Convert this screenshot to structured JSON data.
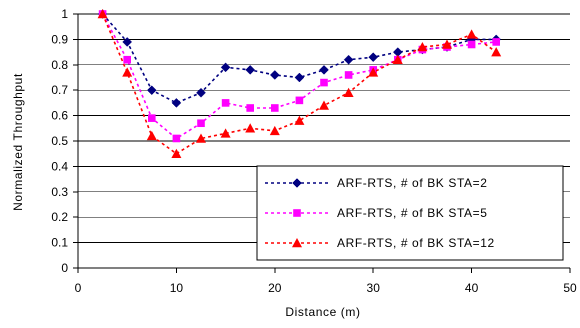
{
  "chart_data": {
    "type": "line",
    "title": "",
    "xlabel": "Distance (m)",
    "ylabel": "Normalized Throughput",
    "xlim": [
      0,
      50
    ],
    "ylim": [
      0,
      1
    ],
    "x_ticks": [
      "0",
      "10",
      "20",
      "30",
      "40",
      "50"
    ],
    "y_ticks": [
      "0",
      "0.1",
      "0.2",
      "0.3",
      "0.4",
      "0.5",
      "0.6",
      "0.7",
      "0.8",
      "0.9",
      "1"
    ],
    "grid": "horizontal",
    "legend_position": "bottom-right",
    "x": [
      2.5,
      5,
      7.5,
      10,
      12.5,
      15,
      17.5,
      20,
      22.5,
      25,
      27.5,
      30,
      32.5,
      35,
      37.5,
      40,
      42.5
    ],
    "series": [
      {
        "name": "ARF-RTS, # of BK STA=2",
        "color": "#000080",
        "marker": "diamond",
        "values": [
          1.0,
          0.89,
          0.7,
          0.65,
          0.69,
          0.79,
          0.78,
          0.76,
          0.75,
          0.78,
          0.82,
          0.83,
          0.85,
          0.86,
          0.87,
          0.9,
          0.9
        ]
      },
      {
        "name": "ARF-RTS, # of BK STA=5",
        "color": "#ff00ff",
        "marker": "square",
        "values": [
          1.0,
          0.82,
          0.59,
          0.51,
          0.57,
          0.65,
          0.63,
          0.63,
          0.66,
          0.73,
          0.76,
          0.78,
          0.82,
          0.86,
          0.87,
          0.88,
          0.89
        ]
      },
      {
        "name": "ARF-RTS, # of BK STA=12",
        "color": "#ff0000",
        "marker": "triangle",
        "values": [
          1.0,
          0.77,
          0.52,
          0.45,
          0.51,
          0.53,
          0.55,
          0.54,
          0.58,
          0.64,
          0.69,
          0.77,
          0.82,
          0.87,
          0.88,
          0.92,
          0.85
        ]
      }
    ]
  }
}
